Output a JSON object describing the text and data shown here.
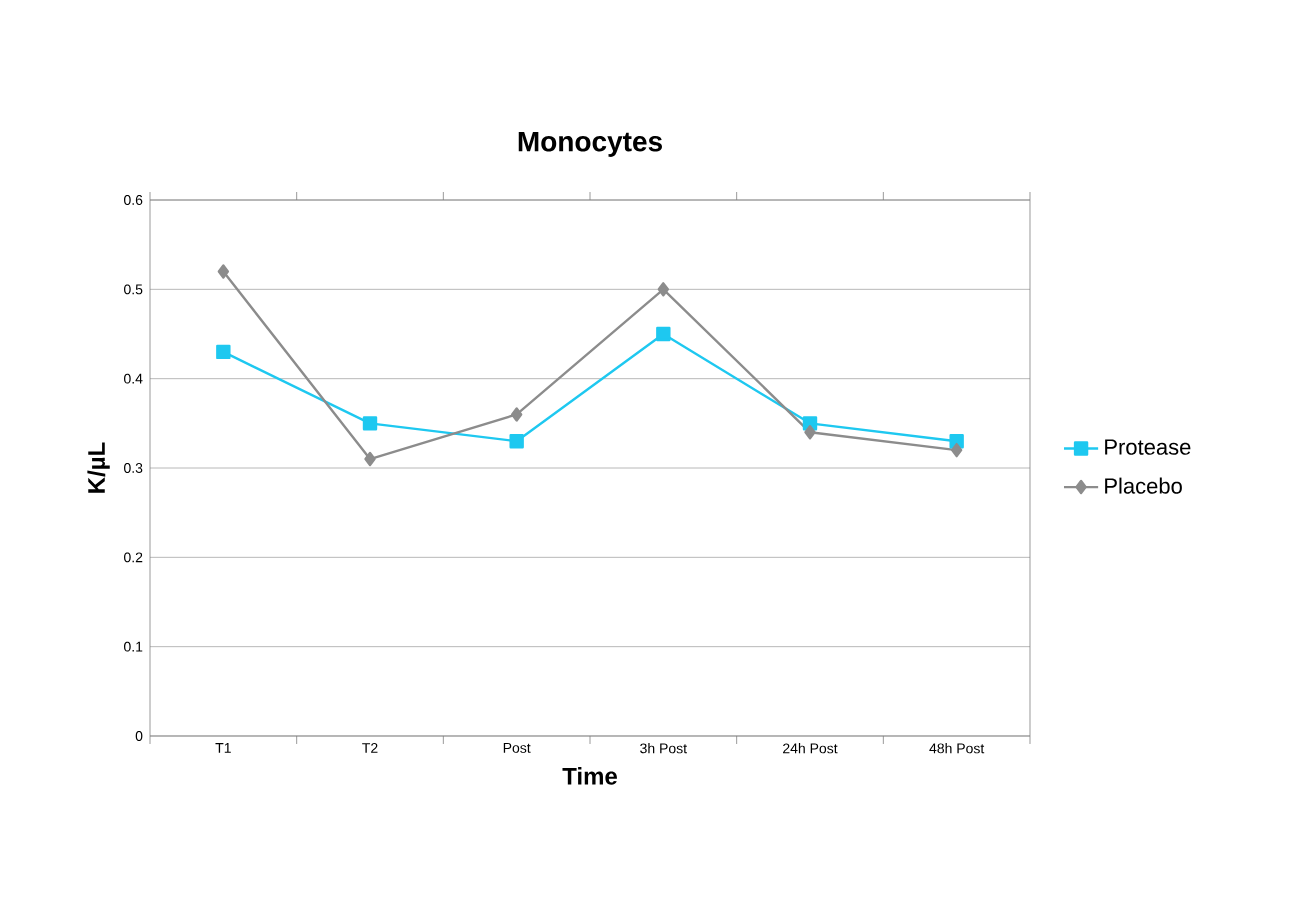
{
  "chart_data": {
    "type": "line",
    "title": "Monocytes",
    "xlabel": "Time",
    "ylabel": "K/µL",
    "categories": [
      "T1",
      "T2",
      "Post",
      "3h Post",
      "24h Post",
      "48h Post"
    ],
    "series": [
      {
        "name": "Protease",
        "color": "#1ec8f0",
        "marker": "square",
        "values": [
          0.43,
          0.35,
          0.33,
          0.45,
          0.35,
          0.33
        ]
      },
      {
        "name": "Placebo",
        "color": "#8c8c8c",
        "marker": "diamond",
        "values": [
          0.52,
          0.31,
          0.36,
          0.5,
          0.34,
          0.32
        ]
      }
    ],
    "ylim": [
      0,
      0.6
    ],
    "yticks": [
      0,
      0.1,
      0.2,
      0.3,
      0.4,
      0.5,
      0.6
    ],
    "grid": "y",
    "legend": "right",
    "line_style": "solid"
  }
}
